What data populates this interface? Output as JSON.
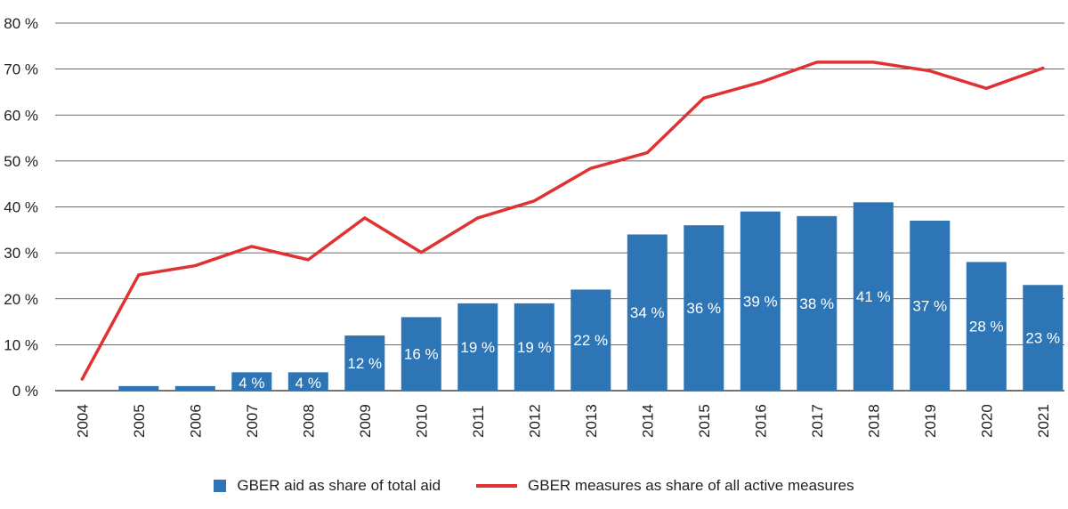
{
  "chart_data": {
    "type": "bar",
    "title": "",
    "xlabel": "",
    "ylabel": "",
    "ylim": [
      0,
      80
    ],
    "y_ticks": [
      "0 %",
      "10 %",
      "20 %",
      "30 %",
      "40 %",
      "50 %",
      "60 %",
      "70 %",
      "80 %"
    ],
    "y_tick_values": [
      0,
      10,
      20,
      30,
      40,
      50,
      60,
      70,
      80
    ],
    "grid": true,
    "categories": [
      "2004",
      "2005",
      "2006",
      "2007",
      "2008",
      "2009",
      "2010",
      "2011",
      "2012",
      "2013",
      "2014",
      "2015",
      "2016",
      "2017",
      "2018",
      "2019",
      "2020",
      "2021"
    ],
    "series": [
      {
        "name": "GBER aid as share of total aid",
        "type": "bar",
        "color": "#2e75b6",
        "values": [
          0,
          1,
          1,
          4,
          4,
          12,
          16,
          19,
          19,
          22,
          34,
          36,
          39,
          38,
          41,
          37,
          28,
          23
        ],
        "labels": [
          "",
          "",
          "",
          "4 %",
          "4 %",
          "12 %",
          "16 %",
          "19 %",
          "19 %",
          "22 %",
          "34 %",
          "36 %",
          "39 %",
          "38 %",
          "41 %",
          "37 %",
          "28 %",
          "23 %"
        ]
      },
      {
        "name": "GBER measures as share of all active measures",
        "type": "line",
        "color": "#e03232",
        "values": [
          2.5,
          25.2,
          27.2,
          31.4,
          28.5,
          37.6,
          30.1,
          37.6,
          41.3,
          48.4,
          51.8,
          63.7,
          67.1,
          71.5,
          71.5,
          69.6,
          65.8,
          70.2
        ]
      }
    ],
    "legend_position": "bottom-center"
  }
}
